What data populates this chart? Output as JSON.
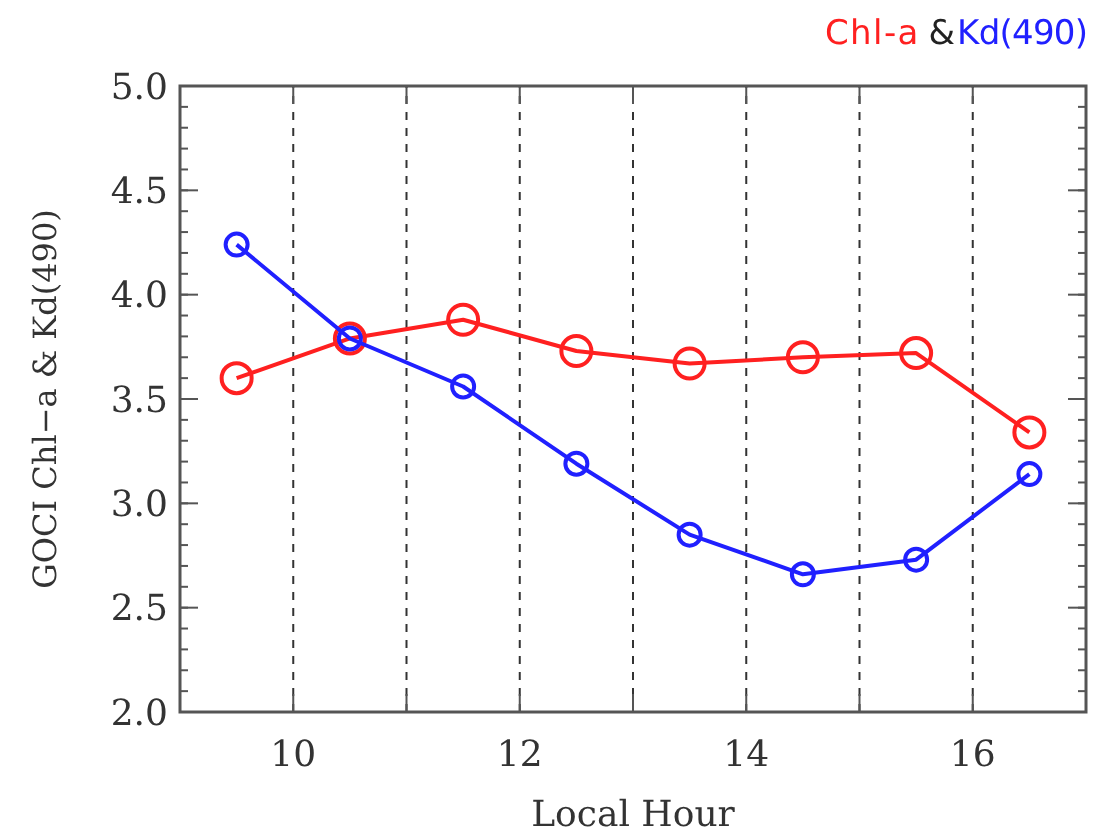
{
  "chart_data": {
    "type": "line",
    "xlabel": "Local Hour",
    "ylabel": "GOCI Chl−a & Kd(490)",
    "annotations": [
      "&"
    ],
    "x": [
      9.5,
      10.5,
      11.5,
      12.5,
      13.5,
      14.5,
      15.5,
      16.5
    ],
    "series": [
      {
        "name": "Chl-a",
        "color": "#ff2020",
        "values": [
          3.6,
          3.79,
          3.88,
          3.73,
          3.67,
          3.7,
          3.72,
          3.34
        ]
      },
      {
        "name": "Kd(490)",
        "color": "#2020ff",
        "values": [
          4.24,
          3.79,
          3.56,
          3.19,
          2.85,
          2.66,
          2.73,
          3.14
        ]
      }
    ],
    "xlim": [
      9,
      17
    ],
    "xticks": [
      10,
      {
        "value": 11,
        "label": null
      },
      12,
      {
        "value": 13,
        "label": null
      },
      14,
      {
        "value": 15,
        "label": null
      },
      16
    ],
    "ylim": [
      2,
      5
    ],
    "yticks": [
      {
        "value": 2,
        "label": "2.0"
      },
      {
        "value": 2.5,
        "label": "2.5"
      },
      {
        "value": 3,
        "label": "3.0"
      },
      {
        "value": 3.5,
        "label": "3.5"
      },
      {
        "value": 4,
        "label": "4.0"
      },
      {
        "value": 4.5,
        "label": "4.5"
      },
      {
        "value": 5,
        "label": "5.0"
      }
    ],
    "grid": "x",
    "legend": "top right",
    "marker": "circle",
    "line_style": "solid"
  }
}
